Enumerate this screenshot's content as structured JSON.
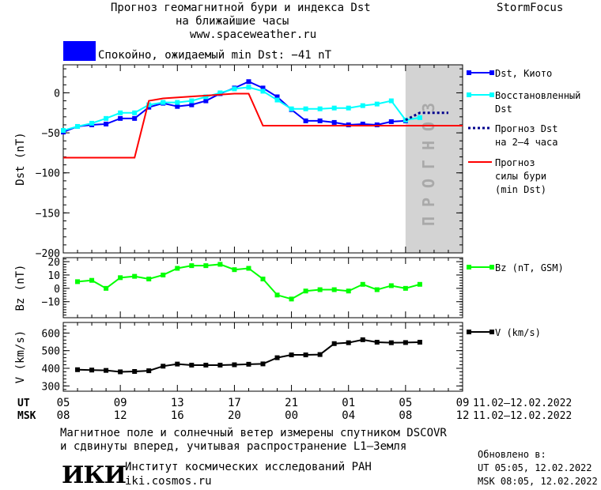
{
  "header": {
    "title_line1": "Прогноз геомагнитной бури и индекса Dst",
    "title_line2": "на ближайшие часы",
    "url": "www.spaceweather.ru",
    "brand": "StormFocus",
    "status_text": "Спокойно, ожидаемый min Dst: −41 nT",
    "status_color": "#0000ff"
  },
  "footer": {
    "note_line1": "Магнитное поле и солнечный ветер измерены спутником DSCOVR",
    "note_line2": "и сдвинуты вперед, учитывая распространение L1–Земля",
    "institute": "Институт космических исследований РАН",
    "institute_url": "iki.cosmos.ru",
    "logo_text": "ИКИ",
    "updated_label": "Обновлено в:",
    "updated_ut": "UT  05:05, 12.02.2022",
    "updated_msk": "MSK 08:05, 12.02.2022"
  },
  "chart_data": [
    {
      "type": "line",
      "ylabel": "Dst (nT)",
      "ylim": [
        -200,
        35
      ],
      "yticks": [
        0,
        -50,
        -100,
        -150,
        -200
      ],
      "xlim": [
        0,
        28
      ],
      "forecast_band": {
        "x": [
          24,
          28
        ],
        "label": "ПРОГНОЗ",
        "color": "#d3d3d3"
      },
      "series": [
        {
          "name": "Dst, Киото",
          "color": "#0000ff",
          "style": "line-square",
          "x": [
            0,
            1,
            2,
            3,
            4,
            5,
            6,
            7,
            8,
            9,
            10,
            11,
            12,
            13,
            14,
            15,
            16,
            17,
            18,
            19,
            20,
            21,
            22,
            23,
            24
          ],
          "y": [
            -49,
            -42,
            -40,
            -39,
            -32,
            -32,
            -18,
            -13,
            -17,
            -15,
            -10,
            -1,
            6,
            14,
            6,
            -5,
            -21,
            -35,
            -35,
            -37,
            -40,
            -39,
            -40,
            -36,
            -35
          ]
        },
        {
          "name": "Восстановленный Dst",
          "color": "#00ffff",
          "style": "line-square",
          "x": [
            0,
            1,
            2,
            3,
            4,
            5,
            6,
            7,
            8,
            9,
            10,
            11,
            12,
            13,
            14,
            15,
            16,
            17,
            18,
            19,
            20,
            21,
            22,
            23,
            24,
            25
          ],
          "y": [
            -47,
            -42,
            -38,
            -32,
            -25,
            -25,
            -15,
            -12,
            -12,
            -10,
            -5,
            0,
            5,
            7,
            2,
            -9,
            -20,
            -20,
            -20,
            -19,
            -19,
            -16,
            -14,
            -10,
            -34,
            -31
          ]
        },
        {
          "name": "Прогноз Dst на 2–4 часа",
          "color": "#00008b",
          "style": "dotted",
          "x": [
            24,
            25,
            26,
            27
          ],
          "y": [
            -34,
            -25,
            -25,
            -25
          ]
        },
        {
          "name": "Прогноз силы бури (min Dst)",
          "color": "#ff0000",
          "style": "line",
          "x": [
            0,
            5,
            6,
            7,
            12,
            13,
            14,
            28
          ],
          "y": [
            -81,
            -81,
            -10,
            -7,
            -1,
            -1,
            -41,
            -41
          ]
        }
      ]
    },
    {
      "type": "line",
      "ylabel": "Bz (nT)",
      "ylim": [
        -22,
        23
      ],
      "yticks": [
        20,
        10,
        0,
        -10
      ],
      "xlim": [
        0,
        28
      ],
      "series": [
        {
          "name": "Bz (nT, GSM)",
          "color": "#00ff00",
          "style": "line-square",
          "x": [
            1,
            2,
            3,
            4,
            5,
            6,
            7,
            8,
            9,
            10,
            11,
            12,
            13,
            14,
            15,
            16,
            17,
            18,
            19,
            20,
            21,
            22,
            23,
            24,
            25
          ],
          "y": [
            5,
            6,
            0,
            8,
            9,
            7,
            10,
            15,
            17,
            17,
            18,
            14,
            15,
            7,
            -5,
            -8,
            -2,
            -1,
            -1,
            -2,
            3,
            -1,
            2,
            0,
            3
          ]
        }
      ]
    },
    {
      "type": "line",
      "ylabel": "V (km/s)",
      "ylim": [
        270,
        660
      ],
      "yticks": [
        600,
        500,
        400,
        300
      ],
      "xlim": [
        0,
        28
      ],
      "series": [
        {
          "name": "V (km/s)",
          "color": "#000000",
          "style": "line-square",
          "x": [
            1,
            2,
            3,
            4,
            5,
            6,
            7,
            8,
            9,
            10,
            11,
            12,
            13,
            14,
            15,
            16,
            17,
            18,
            19,
            20,
            21,
            22,
            23,
            24,
            25
          ],
          "y": [
            392,
            390,
            388,
            380,
            382,
            386,
            412,
            424,
            418,
            418,
            418,
            420,
            423,
            425,
            460,
            476,
            476,
            478,
            540,
            545,
            562,
            548,
            545,
            546,
            548
          ]
        }
      ]
    }
  ],
  "x_axis": {
    "ut_label": "UT",
    "msk_label": "MSK",
    "ut_ticks": [
      "05",
      "09",
      "13",
      "17",
      "21",
      "01",
      "05",
      "09"
    ],
    "msk_ticks": [
      "08",
      "12",
      "16",
      "20",
      "00",
      "04",
      "08",
      "12"
    ],
    "ut_range": "11.02–12.02.2022",
    "msk_range": "11.02–12.02.2022"
  }
}
